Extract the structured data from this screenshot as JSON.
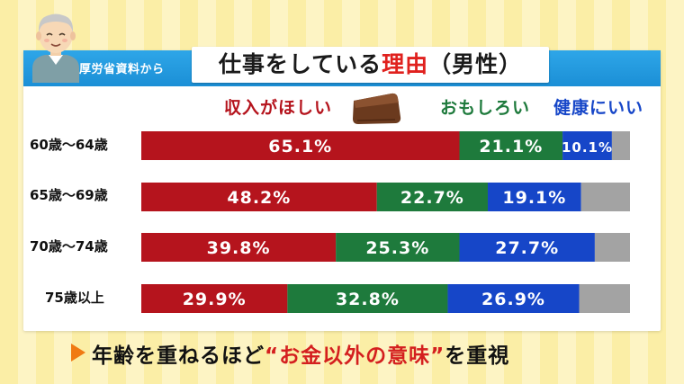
{
  "header": {
    "source": "厚労省資料から",
    "title_pre": "仕事をしている",
    "title_highlight": "理由",
    "title_post": "（男性）"
  },
  "legend": {
    "income": "収入がほしい",
    "interesting": "おもしろい",
    "health": "健康にいい"
  },
  "chart_data": {
    "type": "bar",
    "stacked": true,
    "orientation": "horizontal",
    "categories": [
      "60歳～64歳",
      "65歳～69歳",
      "70歳～74歳",
      "75歳以上"
    ],
    "series": [
      {
        "name": "収入がほしい",
        "color": "#b5141d",
        "values": [
          65.1,
          48.2,
          39.8,
          29.9
        ],
        "labels": [
          "65.1%",
          "48.2%",
          "39.8%",
          "29.9%"
        ]
      },
      {
        "name": "おもしろい",
        "color": "#1e7a3c",
        "values": [
          21.1,
          22.7,
          25.3,
          32.8
        ],
        "labels": [
          "21.1%",
          "22.7%",
          "25.3%",
          "32.8%"
        ]
      },
      {
        "name": "健康にいい",
        "color": "#1646c8",
        "values": [
          10.1,
          19.1,
          27.7,
          26.9
        ],
        "labels": [
          "10.1%",
          "19.1%",
          "27.7%",
          "26.9%"
        ]
      }
    ],
    "remainder_color": "#a3a3a3",
    "xlim": [
      0,
      100
    ]
  },
  "footer": {
    "pre": "年齢を重ねるほど",
    "highlight": "“お金以外の意味”",
    "post": "を重視"
  },
  "colors": {
    "header_blue": "#1f96dc",
    "income_red": "#b5141d",
    "interesting_green": "#1e7a3c",
    "health_blue": "#1646c8",
    "accent_orange": "#f07a12"
  }
}
